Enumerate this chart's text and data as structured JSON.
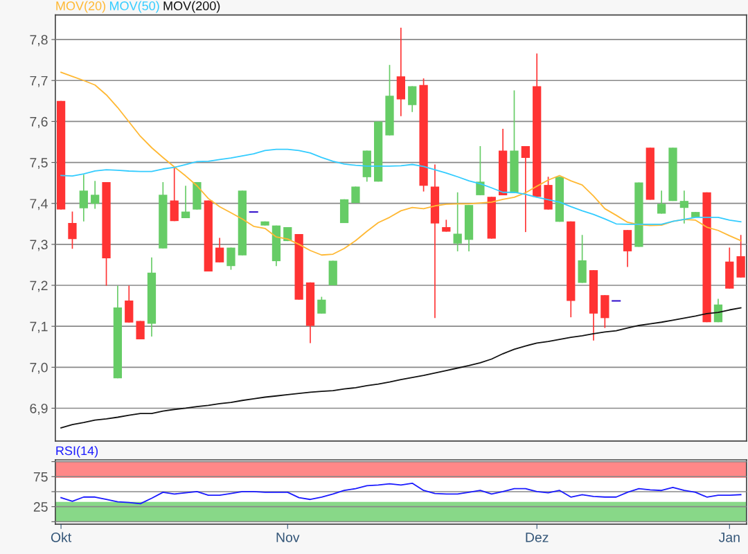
{
  "chart_data": [
    {
      "type": "candlestick",
      "tick_labels": "y",
      "grid": "y",
      "legend": "top left",
      "categories": [
        null,
        null,
        null,
        null,
        null,
        null,
        null,
        null,
        null,
        null,
        null,
        null,
        null,
        null,
        null,
        null,
        null,
        null,
        null,
        null,
        null,
        null,
        null,
        null,
        null,
        null,
        null,
        null,
        null,
        null,
        null,
        null,
        null,
        null,
        null,
        null,
        null,
        null,
        null,
        null,
        null,
        null,
        null,
        null,
        null,
        null,
        null,
        null,
        null,
        null,
        null,
        null,
        null,
        null,
        null,
        null,
        null,
        null,
        null,
        null,
        null
      ],
      "ylim": [
        6.82,
        7.86
      ],
      "yticks": [
        {
          "value": 6.9,
          "label": "6,9"
        },
        {
          "value": 7.0,
          "label": "7,0"
        },
        {
          "value": 7.1,
          "label": "7,1"
        },
        {
          "value": 7.2,
          "label": "7,2"
        },
        {
          "value": 7.3,
          "label": "7,3"
        },
        {
          "value": 7.4,
          "label": "7,4"
        },
        {
          "value": 7.5,
          "label": "7,5"
        },
        {
          "value": 7.6,
          "label": "7,6"
        },
        {
          "value": 7.7,
          "label": "7,7"
        },
        {
          "value": 7.8,
          "label": "7,8"
        }
      ],
      "ohlc": [
        [
          7.65,
          7.65,
          7.385,
          7.385
        ],
        [
          7.352,
          7.38,
          7.289,
          7.313
        ],
        [
          7.388,
          7.47,
          7.356,
          7.431
        ],
        [
          7.399,
          7.455,
          7.387,
          7.421
        ],
        [
          7.452,
          7.452,
          7.199,
          7.266
        ],
        [
          6.973,
          7.199,
          6.973,
          7.146
        ],
        [
          7.163,
          7.199,
          7.109,
          7.109
        ],
        [
          7.113,
          7.113,
          7.068,
          7.068
        ],
        [
          7.106,
          7.268,
          7.075,
          7.231
        ],
        [
          7.29,
          7.452,
          7.29,
          7.421
        ],
        [
          7.407,
          7.487,
          7.357,
          7.357
        ],
        [
          7.364,
          7.443,
          7.364,
          7.38
        ],
        [
          7.385,
          7.452,
          7.385,
          7.452
        ],
        [
          7.407,
          7.407,
          7.234,
          7.234
        ],
        [
          7.292,
          7.316,
          7.256,
          7.256
        ],
        [
          7.247,
          7.292,
          7.238,
          7.292
        ],
        [
          7.273,
          7.431,
          7.273,
          7.431
        ],
        [
          7.379,
          7.379,
          7.379,
          7.379
        ],
        [
          7.346,
          7.356,
          7.346,
          7.356
        ],
        [
          7.259,
          7.346,
          7.247,
          7.346
        ],
        [
          7.308,
          7.342,
          7.308,
          7.342
        ],
        [
          7.325,
          7.325,
          7.165,
          7.165
        ],
        [
          7.207,
          7.207,
          7.059,
          7.101
        ],
        [
          7.131,
          7.172,
          7.131,
          7.165
        ],
        [
          7.2,
          7.26,
          7.2,
          7.26
        ],
        [
          7.352,
          7.41,
          7.352,
          7.41
        ],
        [
          7.401,
          7.441,
          7.401,
          7.441
        ],
        [
          7.464,
          7.529,
          7.453,
          7.529
        ],
        [
          7.453,
          7.6,
          7.453,
          7.6
        ],
        [
          7.566,
          7.738,
          7.566,
          7.663
        ],
        [
          7.71,
          7.829,
          7.613,
          7.654
        ],
        [
          7.64,
          7.686,
          7.623,
          7.686
        ],
        [
          7.689,
          7.705,
          7.429,
          7.443
        ],
        [
          7.441,
          7.495,
          7.12,
          7.351
        ],
        [
          7.342,
          7.36,
          7.331,
          7.331
        ],
        [
          7.302,
          7.427,
          7.283,
          7.326
        ],
        [
          7.311,
          7.396,
          7.283,
          7.396
        ],
        [
          7.42,
          7.54,
          7.42,
          7.453
        ],
        [
          7.416,
          7.416,
          7.314,
          7.314
        ],
        [
          7.529,
          7.582,
          7.42,
          7.42
        ],
        [
          7.425,
          7.676,
          7.425,
          7.529
        ],
        [
          7.54,
          7.54,
          7.33,
          7.511
        ],
        [
          7.686,
          7.766,
          7.416,
          7.416
        ],
        [
          7.445,
          7.465,
          7.385,
          7.385
        ],
        [
          7.355,
          7.465,
          7.355,
          7.465
        ],
        [
          7.356,
          7.356,
          7.122,
          7.162
        ],
        [
          7.206,
          7.323,
          7.206,
          7.261
        ],
        [
          7.237,
          7.237,
          7.065,
          7.131
        ],
        [
          7.176,
          7.176,
          7.096,
          7.12
        ],
        [
          7.162,
          7.162,
          7.162,
          7.162
        ],
        [
          7.335,
          7.335,
          7.245,
          7.283
        ],
        [
          7.294,
          7.451,
          7.294,
          7.451
        ],
        [
          7.536,
          7.536,
          7.409,
          7.409
        ],
        [
          7.375,
          7.431,
          7.375,
          7.399
        ],
        [
          7.406,
          7.536,
          7.406,
          7.536
        ],
        [
          7.389,
          7.431,
          7.351,
          7.406
        ],
        [
          7.366,
          7.379,
          7.366,
          7.379
        ],
        [
          7.427,
          7.427,
          7.11,
          7.11
        ],
        [
          7.11,
          7.167,
          7.11,
          7.153
        ],
        [
          7.258,
          7.292,
          7.192,
          7.192
        ],
        [
          7.271,
          7.323,
          7.219,
          7.219
        ]
      ],
      "colors": [
        "#ff3333",
        "#ff3333",
        "#66cc66",
        "#66cc66",
        "#ff3333",
        "#66cc66",
        "#ff3333",
        "#ff3333",
        "#66cc66",
        "#66cc66",
        "#ff3333",
        "#66cc66",
        "#66cc66",
        "#ff3333",
        "#ff3333",
        "#66cc66",
        "#66cc66",
        "#3311cc",
        "#66cc66",
        "#66cc66",
        "#66cc66",
        "#ff3333",
        "#ff3333",
        "#66cc66",
        "#66cc66",
        "#66cc66",
        "#66cc66",
        "#66cc66",
        "#66cc66",
        "#66cc66",
        "#ff3333",
        "#66cc66",
        "#ff3333",
        "#ff3333",
        "#ff3333",
        "#66cc66",
        "#66cc66",
        "#66cc66",
        "#ff3333",
        "#ff3333",
        "#66cc66",
        "#ff3333",
        "#ff3333",
        "#ff3333",
        "#66cc66",
        "#ff3333",
        "#66cc66",
        "#ff3333",
        "#ff3333",
        "#3311cc",
        "#ff3333",
        "#66cc66",
        "#ff3333",
        "#66cc66",
        "#66cc66",
        "#66cc66",
        "#66cc66",
        "#ff3333",
        "#66cc66",
        "#ff3333",
        "#ff3333"
      ],
      "series": [
        {
          "name": "MOV(20)",
          "type": "line",
          "color": "#ffb833",
          "values": [
            7.72,
            7.71,
            7.7,
            7.689,
            7.665,
            7.634,
            7.599,
            7.564,
            7.536,
            7.512,
            7.489,
            7.467,
            7.443,
            7.412,
            7.392,
            7.377,
            7.362,
            7.344,
            7.339,
            7.318,
            7.313,
            7.3,
            7.285,
            7.274,
            7.276,
            7.29,
            7.309,
            7.332,
            7.353,
            7.366,
            7.382,
            7.39,
            7.387,
            7.394,
            7.398,
            7.399,
            7.399,
            7.401,
            7.403,
            7.41,
            7.415,
            7.426,
            7.442,
            7.457,
            7.468,
            7.455,
            7.445,
            7.418,
            7.387,
            7.371,
            7.354,
            7.348,
            7.346,
            7.347,
            7.356,
            7.361,
            7.359,
            7.342,
            7.334,
            7.321,
            7.309
          ]
        },
        {
          "name": "MOV(50)",
          "type": "line",
          "color": "#33ccff",
          "values": [
            7.468,
            7.467,
            7.472,
            7.479,
            7.482,
            7.481,
            7.479,
            7.478,
            7.478,
            7.484,
            7.488,
            7.495,
            7.502,
            7.503,
            7.507,
            7.511,
            7.516,
            7.521,
            7.529,
            7.532,
            7.532,
            7.529,
            7.523,
            7.512,
            7.503,
            7.496,
            7.493,
            7.491,
            7.491,
            7.491,
            7.492,
            7.495,
            7.49,
            7.482,
            7.474,
            7.465,
            7.455,
            7.448,
            7.438,
            7.427,
            7.427,
            7.422,
            7.415,
            7.409,
            7.403,
            7.392,
            7.382,
            7.373,
            7.362,
            7.35,
            7.349,
            7.349,
            7.349,
            7.349,
            7.356,
            7.361,
            7.366,
            7.366,
            7.366,
            7.359,
            7.355
          ]
        },
        {
          "name": "MOV(200)",
          "type": "line",
          "color": "#111111",
          "values": [
            6.852,
            6.86,
            6.865,
            6.871,
            6.874,
            6.878,
            6.883,
            6.887,
            6.887,
            6.893,
            6.897,
            6.9,
            6.904,
            6.907,
            6.911,
            6.914,
            6.919,
            6.923,
            6.927,
            6.93,
            6.933,
            6.936,
            6.939,
            6.941,
            6.943,
            6.947,
            6.95,
            6.955,
            6.959,
            6.964,
            6.97,
            6.975,
            6.98,
            6.986,
            6.992,
            6.998,
            7.004,
            7.011,
            7.02,
            7.033,
            7.044,
            7.052,
            7.059,
            7.063,
            7.068,
            7.073,
            7.077,
            7.082,
            7.086,
            7.089,
            7.096,
            7.102,
            7.106,
            7.11,
            7.115,
            7.12,
            7.125,
            7.131,
            7.134,
            7.14,
            7.145
          ]
        }
      ]
    },
    {
      "type": "line",
      "title": "RSI(14)",
      "grid": "y",
      "categories": [
        "Okt",
        null,
        null,
        null,
        null,
        null,
        null,
        null,
        null,
        null,
        null,
        null,
        null,
        null,
        null,
        null,
        null,
        null,
        null,
        null,
        "Nov",
        null,
        null,
        null,
        null,
        null,
        null,
        null,
        null,
        null,
        null,
        null,
        null,
        null,
        null,
        null,
        null,
        null,
        null,
        null,
        null,
        null,
        "Dez",
        null,
        null,
        null,
        null,
        null,
        null,
        null,
        null,
        null,
        null,
        null,
        null,
        null,
        null,
        null,
        null,
        "Jan",
        null
      ],
      "ylim": [
        -4,
        103
      ],
      "yticks": [
        {
          "value": 0,
          "label": null
        },
        25,
        {
          "value": 50,
          "label": null
        },
        75,
        {
          "value": 100,
          "label": null
        }
      ],
      "bands": [
        {
          "axis": "y",
          "from": 73,
          "to": 100,
          "color": "#ff8888"
        },
        {
          "axis": "y",
          "from": 0,
          "to": 33,
          "color": "#88d888"
        }
      ],
      "series": [
        {
          "color": "#1a1aff",
          "values": [
            40,
            34,
            41,
            41,
            37,
            33,
            32,
            30,
            39,
            49,
            46,
            48,
            50,
            44,
            44,
            47,
            50,
            50,
            49,
            49,
            49,
            40,
            37,
            41,
            46,
            52,
            55,
            60,
            61,
            63,
            61,
            64,
            52,
            47,
            46,
            46,
            49,
            52,
            46,
            50,
            55,
            55,
            50,
            48,
            52,
            41,
            45,
            42,
            41,
            41,
            49,
            55,
            53,
            52,
            57,
            52,
            49,
            41,
            44,
            44,
            45
          ]
        }
      ]
    }
  ]
}
